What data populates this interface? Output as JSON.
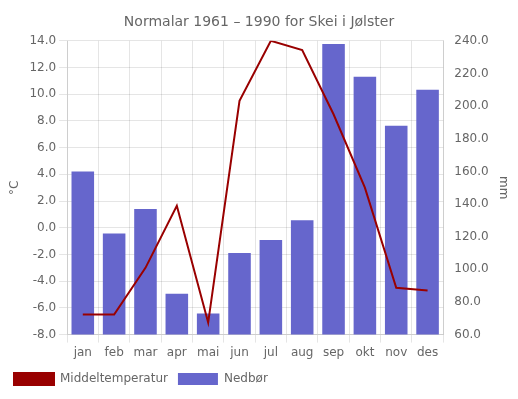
{
  "chart_data": {
    "type": "bar",
    "title": "Normalar 1961 – 1990 for Skei i Jølster",
    "categories": [
      "jan",
      "feb",
      "mar",
      "apr",
      "mai",
      "jun",
      "jul",
      "aug",
      "sep",
      "okt",
      "nov",
      "des"
    ],
    "series": [
      {
        "name": "Middeltemperatur",
        "type": "line",
        "color": "#990000",
        "axis": "y",
        "values": [
          -6.5,
          -6.5,
          -3.0,
          1.65,
          -7.1,
          9.5,
          14.0,
          13.3,
          8.5,
          3.0,
          -4.5,
          -4.7
        ]
      },
      {
        "name": "Nedbør",
        "type": "bar",
        "color": "#6666cc",
        "axis": "y2",
        "values": [
          160,
          122,
          137,
          85,
          73,
          110,
          118,
          130,
          238,
          218,
          188,
          210
        ]
      }
    ],
    "ylabel": "°C",
    "y2label": "mm",
    "ylim": [
      -8.0,
      14.0
    ],
    "yticks": [
      {
        "value": -8,
        "label": "-8.0"
      },
      {
        "value": -6,
        "label": "-6.0"
      },
      {
        "value": -4,
        "label": "-4.0"
      },
      {
        "value": -2,
        "label": "-2.0"
      },
      {
        "value": 0,
        "label": "0.0"
      },
      {
        "value": 2,
        "label": "2.0"
      },
      {
        "value": 4,
        "label": "4.0"
      },
      {
        "value": 6,
        "label": "6.0"
      },
      {
        "value": 8,
        "label": "8.0"
      },
      {
        "value": 10,
        "label": "10.0"
      },
      {
        "value": 12,
        "label": "12.0"
      },
      {
        "value": 14,
        "label": "14.0"
      }
    ],
    "y2lim": [
      60.0,
      240.0
    ],
    "y2ticks": [
      {
        "value": 60,
        "label": "60.0"
      },
      {
        "value": 80,
        "label": "80.0"
      },
      {
        "value": 100,
        "label": "100.0"
      },
      {
        "value": 120,
        "label": "120.0"
      },
      {
        "value": 140,
        "label": "140.0"
      },
      {
        "value": 160,
        "label": "160.0"
      },
      {
        "value": 180,
        "label": "180.0"
      },
      {
        "value": 200,
        "label": "200.0"
      },
      {
        "value": 220,
        "label": "220.0"
      },
      {
        "value": 240,
        "label": "240.0"
      }
    ],
    "grid": true,
    "legend": "bottom"
  }
}
